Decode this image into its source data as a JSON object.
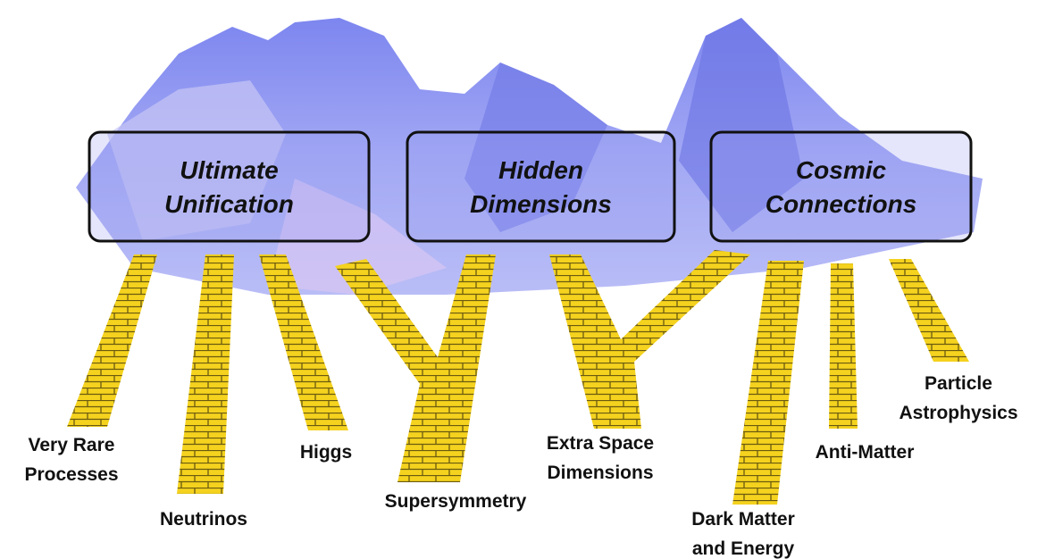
{
  "boxes": [
    {
      "lines": [
        "Ultimate",
        "Unification"
      ]
    },
    {
      "lines": [
        "Hidden",
        "Dimensions"
      ]
    },
    {
      "lines": [
        "Cosmic",
        "Connections"
      ]
    }
  ],
  "paths": [
    {
      "lines": [
        "Very Rare",
        "Processes"
      ]
    },
    {
      "lines": [
        "Neutrinos"
      ]
    },
    {
      "lines": [
        "Higgs"
      ]
    },
    {
      "lines": [
        "Supersymmetry"
      ]
    },
    {
      "lines": [
        "Extra Space",
        "Dimensions"
      ]
    },
    {
      "lines": [
        "Dark Matter",
        "and Energy"
      ]
    },
    {
      "lines": [
        "Anti-Matter"
      ]
    },
    {
      "lines": [
        "Particle",
        "Astrophysics"
      ]
    }
  ]
}
